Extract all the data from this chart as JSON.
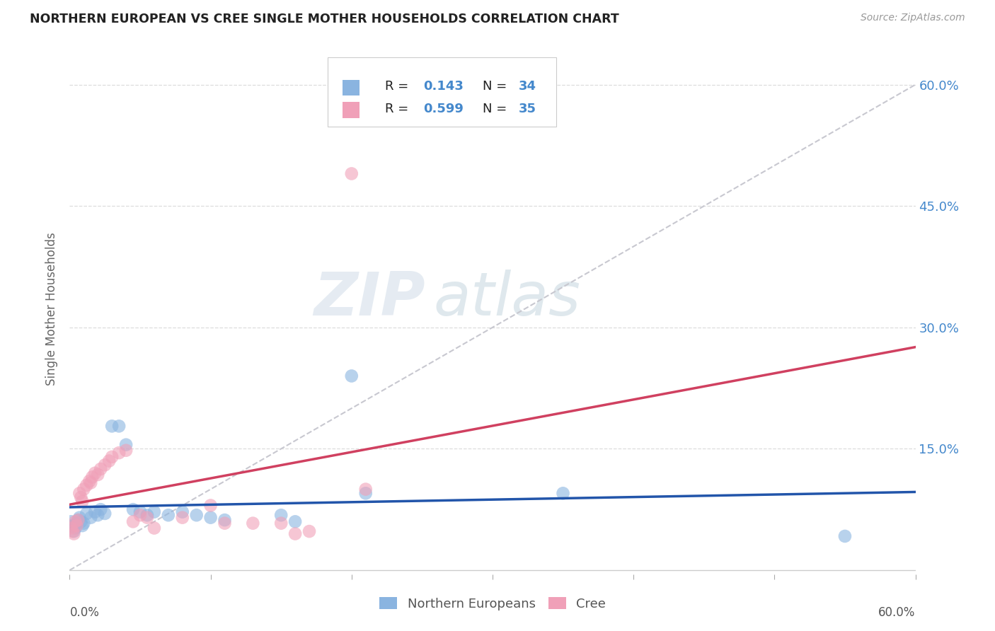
{
  "title": "NORTHERN EUROPEAN VS CREE SINGLE MOTHER HOUSEHOLDS CORRELATION CHART",
  "source": "Source: ZipAtlas.com",
  "ylabel": "Single Mother Households",
  "xlim": [
    0.0,
    0.6
  ],
  "ylim": [
    -0.005,
    0.65
  ],
  "yticks": [
    0.0,
    0.15,
    0.3,
    0.45,
    0.6
  ],
  "ytick_labels": [
    "",
    "15.0%",
    "30.0%",
    "45.0%",
    "60.0%"
  ],
  "xticks": [
    0.0,
    0.1,
    0.2,
    0.3,
    0.4,
    0.5,
    0.6
  ],
  "blue_color": "#8ab4e0",
  "pink_color": "#f0a0b8",
  "blue_line_color": "#2255aa",
  "pink_line_color": "#d04060",
  "diag_line_color": "#c8c8d0",
  "text_color": "#4488cc",
  "watermark_zip": "ZIP",
  "watermark_atlas": "atlas",
  "blue_scatter": [
    [
      0.001,
      0.06
    ],
    [
      0.002,
      0.055
    ],
    [
      0.003,
      0.048
    ],
    [
      0.004,
      0.052
    ],
    [
      0.005,
      0.058
    ],
    [
      0.006,
      0.062
    ],
    [
      0.007,
      0.065
    ],
    [
      0.008,
      0.06
    ],
    [
      0.009,
      0.055
    ],
    [
      0.01,
      0.058
    ],
    [
      0.012,
      0.07
    ],
    [
      0.015,
      0.065
    ],
    [
      0.018,
      0.072
    ],
    [
      0.02,
      0.068
    ],
    [
      0.022,
      0.075
    ],
    [
      0.025,
      0.07
    ],
    [
      0.03,
      0.178
    ],
    [
      0.035,
      0.178
    ],
    [
      0.04,
      0.155
    ],
    [
      0.045,
      0.075
    ],
    [
      0.05,
      0.072
    ],
    [
      0.055,
      0.068
    ],
    [
      0.06,
      0.072
    ],
    [
      0.07,
      0.068
    ],
    [
      0.08,
      0.072
    ],
    [
      0.09,
      0.068
    ],
    [
      0.1,
      0.065
    ],
    [
      0.11,
      0.062
    ],
    [
      0.15,
      0.068
    ],
    [
      0.16,
      0.06
    ],
    [
      0.2,
      0.24
    ],
    [
      0.21,
      0.095
    ],
    [
      0.35,
      0.095
    ],
    [
      0.55,
      0.042
    ]
  ],
  "pink_scatter": [
    [
      0.001,
      0.052
    ],
    [
      0.002,
      0.048
    ],
    [
      0.003,
      0.045
    ],
    [
      0.004,
      0.06
    ],
    [
      0.005,
      0.055
    ],
    [
      0.006,
      0.062
    ],
    [
      0.007,
      0.095
    ],
    [
      0.008,
      0.09
    ],
    [
      0.009,
      0.085
    ],
    [
      0.01,
      0.1
    ],
    [
      0.012,
      0.105
    ],
    [
      0.014,
      0.11
    ],
    [
      0.015,
      0.108
    ],
    [
      0.016,
      0.115
    ],
    [
      0.018,
      0.12
    ],
    [
      0.02,
      0.118
    ],
    [
      0.022,
      0.125
    ],
    [
      0.025,
      0.13
    ],
    [
      0.028,
      0.135
    ],
    [
      0.03,
      0.14
    ],
    [
      0.035,
      0.145
    ],
    [
      0.04,
      0.148
    ],
    [
      0.045,
      0.06
    ],
    [
      0.05,
      0.068
    ],
    [
      0.055,
      0.065
    ],
    [
      0.06,
      0.052
    ],
    [
      0.08,
      0.065
    ],
    [
      0.1,
      0.08
    ],
    [
      0.11,
      0.058
    ],
    [
      0.13,
      0.058
    ],
    [
      0.15,
      0.058
    ],
    [
      0.16,
      0.045
    ],
    [
      0.17,
      0.048
    ],
    [
      0.2,
      0.49
    ],
    [
      0.21,
      0.1
    ]
  ]
}
